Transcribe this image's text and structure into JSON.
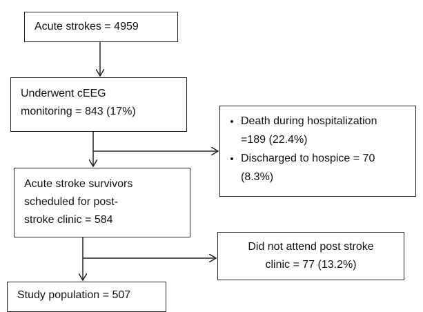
{
  "nodes": [
    {
      "lines": [
        "Acute strokes = 4959"
      ]
    },
    {
      "lines": [
        "Underwent cEEG",
        "monitoring = 843  (17%)"
      ]
    },
    {
      "items": [
        {
          "lines": [
            "Death during hospitalization",
            "=189 (22.4%)"
          ]
        },
        {
          "lines": [
            "Discharged to hospice = 70",
            "(8.3%)"
          ]
        }
      ]
    },
    {
      "lines": [
        "Acute stroke survivors",
        "scheduled for post-",
        "stroke clinic = 584"
      ]
    },
    {
      "lines": [
        "Did not attend post stroke",
        "clinic = 77 (13.2%)"
      ]
    },
    {
      "lines": [
        "Study population = 507"
      ]
    }
  ]
}
